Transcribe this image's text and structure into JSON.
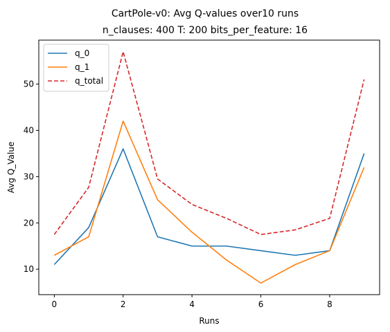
{
  "chart_data": {
    "type": "line",
    "title": "CartPole-v0: Avg Q-values over10 runs",
    "subtitle": "n_clauses: 400 T: 200 bits_per_feature: 16",
    "xlabel": "Runs",
    "ylabel": "Avg Q_Value",
    "x": [
      0,
      1,
      2,
      3,
      4,
      5,
      6,
      7,
      8,
      9
    ],
    "xlim": [
      -0.45,
      9.45
    ],
    "ylim": [
      4.5,
      59.5
    ],
    "xticks": [
      0,
      2,
      4,
      6,
      8
    ],
    "yticks": [
      10,
      20,
      30,
      40,
      50
    ],
    "grid": false,
    "legend_position": "top-left",
    "series": [
      {
        "name": "q_0",
        "color": "#1f77b4",
        "dash": "solid",
        "values": [
          11,
          19,
          36,
          17,
          15,
          15,
          14,
          13,
          14,
          35
        ]
      },
      {
        "name": "q_1",
        "color": "#ff7f0e",
        "dash": "solid",
        "values": [
          13,
          17,
          42,
          25,
          18,
          12,
          7,
          11,
          14,
          32
        ]
      },
      {
        "name": "q_total",
        "color": "#d62728",
        "dash": "dashed",
        "values": [
          17.5,
          27.7,
          57,
          29.5,
          24,
          21,
          17.5,
          18.5,
          21,
          51
        ]
      }
    ]
  }
}
